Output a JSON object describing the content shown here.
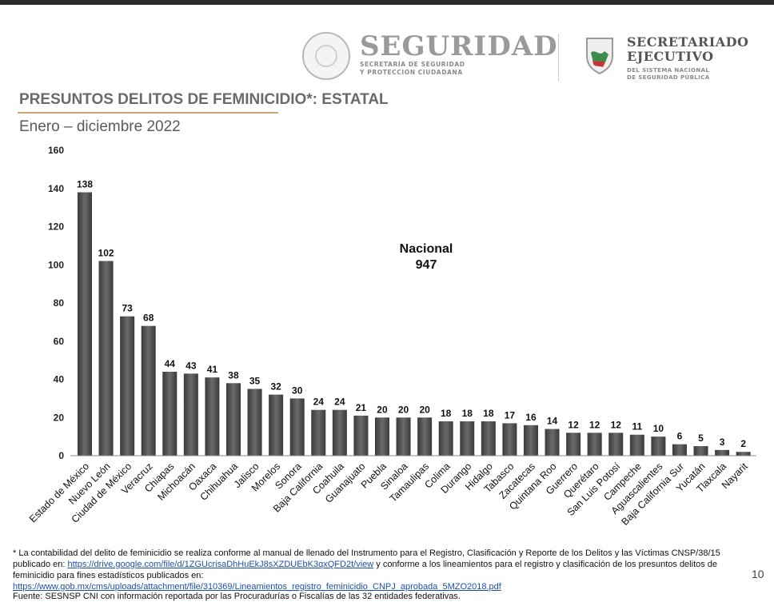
{
  "header": {
    "logo_left_word": "SEGURIDAD",
    "logo_left_sub1": "SECRETARÍA DE SEGURIDAD",
    "logo_left_sub2": "Y PROTECCIÓN CIUDADANA",
    "logo_right_word1": "SECRETARIADO",
    "logo_right_word2": "EJECUTIVO",
    "logo_right_sub1": "DEL SISTEMA NACIONAL",
    "logo_right_sub2": "DE SEGURIDAD PÚBLICA"
  },
  "title": "PRESUNTOS DELITOS DE FEMINICIDIO*: ESTATAL",
  "subtitle": "Enero – diciembre 2022",
  "nacional": {
    "label": "Nacional",
    "value": "947"
  },
  "chart_data": {
    "type": "bar",
    "categories": [
      "Estado de México",
      "Nuevo León",
      "Ciudad de México",
      "Veracruz",
      "Chiapas",
      "Michoacán",
      "Oaxaca",
      "Chihuahua",
      "Jalisco",
      "Morelos",
      "Sonora",
      "Baja California",
      "Coahuila",
      "Guanajuato",
      "Puebla",
      "Sinaloa",
      "Tamaulipas",
      "Colima",
      "Durango",
      "Hidalgo",
      "Tabasco",
      "Zacatecas",
      "Quintana Roo",
      "Guerrero",
      "Querétaro",
      "San Luis Potosí",
      "Campeche",
      "Aguascalientes",
      "Baja California Sur",
      "Yucatán",
      "Tlaxcala",
      "Nayarit"
    ],
    "values": [
      138,
      102,
      73,
      68,
      44,
      43,
      41,
      38,
      35,
      32,
      30,
      24,
      24,
      21,
      20,
      20,
      20,
      18,
      18,
      18,
      17,
      16,
      14,
      12,
      12,
      12,
      11,
      10,
      6,
      5,
      3,
      2
    ],
    "ylim": [
      0,
      160
    ],
    "yticks": [
      0,
      20,
      40,
      60,
      80,
      100,
      120,
      140,
      160
    ],
    "bar_color": "#555555",
    "grid": false
  },
  "footnote": {
    "line1_a": "* La contabilidad del delito de feminicidio se realiza conforme al manual de llenado del Instrumento para el Registro, Clasificación y Reporte de los Delitos y las Víctimas CNSP/38/15 publicado en: ",
    "link1": "https://drive.google.com/file/d/1ZGUcrisaDhHuEkJ8sXZDUEbK3qxQFD2t/view",
    "line1_b": " y conforme a los lineamientos para el registro y clasificación de los presuntos delitos de feminicidio para fines estadísticos publicados en:",
    "link2": "https://www.gob.mx/cms/uploads/attachment/file/310369/Lineamientos_registro_feminicidio_CNPJ_aprobada_5MZO2018.pdf",
    "line3": "Fuente: SESNSP CNI con información reportada por las Procuradurías o Fiscalías de las 32 entidades federativas."
  },
  "page_number": "10"
}
